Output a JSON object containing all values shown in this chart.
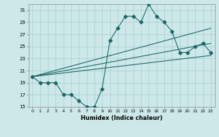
{
  "title": "",
  "xlabel": "Humidex (Indice chaleur)",
  "bg_color": "#cce8e8",
  "grid_color": "#aacccc",
  "line_color": "#1a6666",
  "xlim": [
    -0.5,
    23.5
  ],
  "ylim": [
    15,
    32
  ],
  "xticks": [
    0,
    1,
    2,
    3,
    4,
    5,
    6,
    7,
    8,
    9,
    10,
    11,
    12,
    13,
    14,
    15,
    16,
    17,
    18,
    19,
    20,
    21,
    22,
    23
  ],
  "yticks": [
    15,
    17,
    19,
    21,
    23,
    25,
    27,
    29,
    31
  ],
  "line1_x": [
    0,
    1,
    2,
    3,
    4,
    5,
    6,
    7,
    8,
    9,
    10,
    11,
    12,
    13,
    14,
    15,
    16,
    17,
    18,
    19,
    20,
    21,
    22,
    23
  ],
  "line1_y": [
    20,
    19,
    19,
    19,
    17,
    17,
    16,
    15,
    15,
    18,
    26,
    28,
    30,
    30,
    29,
    32,
    30,
    29,
    27.5,
    24,
    24,
    25,
    25.5,
    24
  ],
  "trend1_x": [
    0,
    23
  ],
  "trend1_y": [
    20,
    28
  ],
  "trend2_x": [
    0,
    23
  ],
  "trend2_y": [
    20,
    25.5
  ],
  "trend3_x": [
    0,
    23
  ],
  "trend3_y": [
    20,
    23.5
  ],
  "marker": "D",
  "markersize": 2.5,
  "tick_fontsize": 5,
  "xlabel_fontsize": 6
}
